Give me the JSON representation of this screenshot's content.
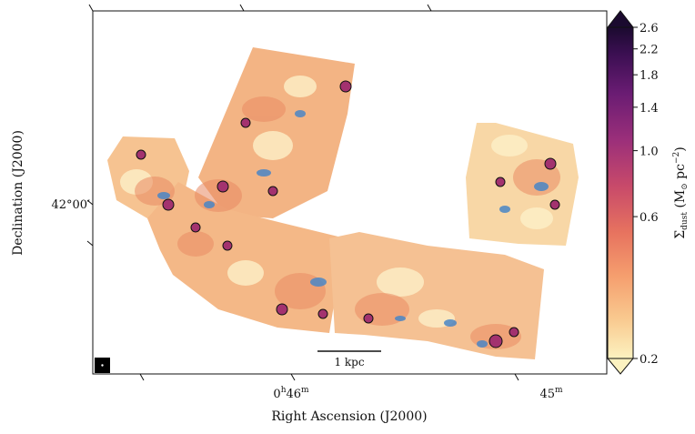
{
  "axes": {
    "xlabel": "Right Ascension (J2000)",
    "ylabel": "Declination (J2000)",
    "xticks": [
      {
        "main": "0",
        "sup1": "h",
        "mid": "46",
        "sup2": "m"
      },
      {
        "main": "45",
        "sup1": "",
        "mid": "",
        "sup2": "m"
      }
    ],
    "yticks": [
      "42°00′"
    ]
  },
  "scalebar": {
    "label": "1 kpc"
  },
  "colorbar": {
    "label_main": "Σ",
    "label_sub": "dust",
    "label_rest": " (M",
    "label_sun_sub": "⊙",
    "label_units": " pc",
    "label_exp": "−2",
    "label_close": ")",
    "scale": "log",
    "colormap": "magma_r",
    "range": [
      0.2,
      2.6
    ],
    "ticks": [
      "2.6",
      "2.2",
      "1.8",
      "1.4",
      "1.0",
      "0.6",
      "0.2"
    ],
    "colors": [
      "#fcf2c0",
      "#f9c98f",
      "#f59e6e",
      "#e7735f",
      "#c84a6a",
      "#9b2f7a",
      "#6a1c73",
      "#3b0f52",
      "#1b0a2f"
    ]
  },
  "contours": {
    "outer_color": "#111111",
    "inner_color": "#4a86c6"
  }
}
